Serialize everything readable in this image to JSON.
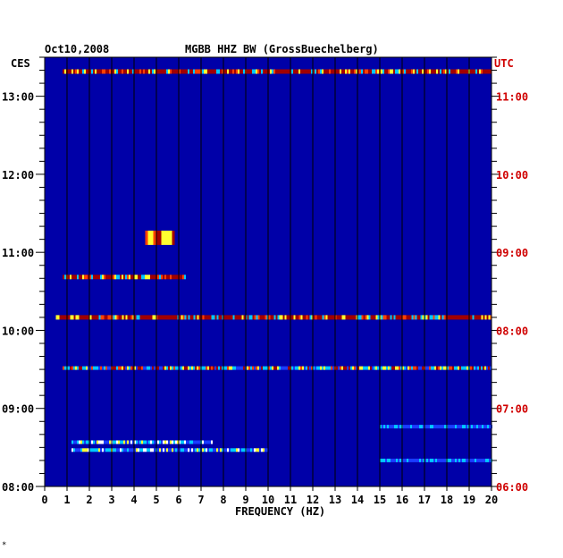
{
  "header": {
    "date": "Oct10,2008",
    "station": "MGBB HHZ BW (GrossBuechelberg)",
    "left_zone": "CES",
    "right_zone": "UTC"
  },
  "footnote": "*",
  "colors": {
    "background": "#0000a8",
    "grid": "#000000",
    "axis": "#000000",
    "utc_text": "#d00000",
    "weak": "#1a3cff",
    "medium": "#00c8ff",
    "strong": "#ffff30",
    "max": "#a00000"
  },
  "chart_data": {
    "type": "heatmap",
    "xlabel": "FREQUENCY (HZ)",
    "xlim": [
      0,
      20
    ],
    "x_ticks": [
      "0",
      "1",
      "2",
      "3",
      "4",
      "5",
      "6",
      "7",
      "8",
      "9",
      "10",
      "11",
      "12",
      "13",
      "14",
      "15",
      "16",
      "17",
      "18",
      "19",
      "20"
    ],
    "ylim_ces": [
      "08:00",
      "13:30"
    ],
    "y_ticks_left": [
      "13:00",
      "12:00",
      "11:00",
      "10:00",
      "09:00",
      "08:00"
    ],
    "y_ticks_right": [
      "11:00",
      "10:00",
      "09:00",
      "08:00",
      "07:00",
      "06:00"
    ],
    "grid": true,
    "bands": [
      {
        "time_ces": "13:19",
        "f_start": 0.8,
        "f_end": 20,
        "intensity": "max"
      },
      {
        "time_ces": "10:41",
        "f_start": 0.8,
        "f_end": 6.3,
        "intensity": "max"
      },
      {
        "time_ces": "10:10",
        "f_start": 0.5,
        "f_end": 20,
        "intensity": "max"
      },
      {
        "time_ces": "09:31",
        "f_start": 0.8,
        "f_end": 20,
        "intensity": "strong"
      },
      {
        "time_ces": "11:15",
        "f_start": 4.5,
        "f_end": 5.8,
        "intensity": "max"
      },
      {
        "time_ces": "08:34",
        "f_start": 1.2,
        "f_end": 7.5,
        "intensity": "medium"
      },
      {
        "time_ces": "08:28",
        "f_start": 1.2,
        "f_end": 10.0,
        "intensity": "medium"
      },
      {
        "time_ces": "08:46",
        "f_start": 15.0,
        "f_end": 20,
        "intensity": "weak"
      },
      {
        "time_ces": "08:20",
        "f_start": 15.0,
        "f_end": 20,
        "intensity": "weak"
      }
    ]
  }
}
